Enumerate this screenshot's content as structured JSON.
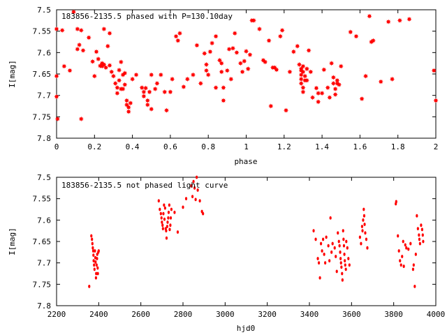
{
  "chart_data": [
    {
      "type": "scatter",
      "title": "183856-2135.5 phased with P=130.10day",
      "xlabel": "phase",
      "ylabel": "I[mag]",
      "xlim": [
        0,
        2
      ],
      "ylim": [
        7.5,
        7.8
      ],
      "y_inverted": true,
      "grid": false,
      "marker": "star",
      "color": "#ff0000",
      "xticks": [
        "0",
        "0.2",
        "0.4",
        "0.6",
        "0.8",
        "1",
        "1.2",
        "1.4",
        "1.6",
        "1.8",
        "2"
      ],
      "xtick_values": [
        0,
        0.2,
        0.4,
        0.6,
        0.8,
        1,
        1.2,
        1.4,
        1.6,
        1.8,
        2
      ],
      "yticks": [
        "7.5",
        "7.55",
        "7.6",
        "7.65",
        "7.7",
        "7.75",
        "7.8"
      ],
      "ytick_values": [
        7.5,
        7.55,
        7.6,
        7.65,
        7.7,
        7.75,
        7.8
      ],
      "points": [
        [
          0.0,
          7.545
        ],
        [
          0.0,
          7.655
        ],
        [
          0.0,
          7.703
        ],
        [
          0.005,
          7.755
        ],
        [
          0.03,
          7.548
        ],
        [
          0.04,
          7.632
        ],
        [
          0.07,
          7.642
        ],
        [
          0.09,
          7.505
        ],
        [
          0.11,
          7.545
        ],
        [
          0.11,
          7.592
        ],
        [
          0.12,
          7.582
        ],
        [
          0.13,
          7.548
        ],
        [
          0.13,
          7.755
        ],
        [
          0.14,
          7.595
        ],
        [
          0.17,
          7.565
        ],
        [
          0.19,
          7.621
        ],
        [
          0.2,
          7.655
        ],
        [
          0.21,
          7.598
        ],
        [
          0.22,
          7.615
        ],
        [
          0.23,
          7.631
        ],
        [
          0.24,
          7.625
        ],
        [
          0.24,
          7.632
        ],
        [
          0.25,
          7.628
        ],
        [
          0.25,
          7.545
        ],
        [
          0.26,
          7.635
        ],
        [
          0.27,
          7.585
        ],
        [
          0.28,
          7.63
        ],
        [
          0.28,
          7.555
        ],
        [
          0.29,
          7.645
        ],
        [
          0.3,
          7.655
        ],
        [
          0.31,
          7.672
        ],
        [
          0.32,
          7.682
        ],
        [
          0.32,
          7.695
        ],
        [
          0.33,
          7.665
        ],
        [
          0.33,
          7.641
        ],
        [
          0.34,
          7.685
        ],
        [
          0.34,
          7.622
        ],
        [
          0.35,
          7.652
        ],
        [
          0.35,
          7.685
        ],
        [
          0.36,
          7.675
        ],
        [
          0.36,
          7.648
        ],
        [
          0.37,
          7.712
        ],
        [
          0.37,
          7.722
        ],
        [
          0.38,
          7.728
        ],
        [
          0.38,
          7.738
        ],
        [
          0.39,
          7.718
        ],
        [
          0.4,
          7.662
        ],
        [
          0.42,
          7.652
        ],
        [
          0.45,
          7.682
        ],
        [
          0.46,
          7.692
        ],
        [
          0.46,
          7.702
        ],
        [
          0.47,
          7.683
        ],
        [
          0.48,
          7.712
        ],
        [
          0.48,
          7.722
        ],
        [
          0.49,
          7.692
        ],
        [
          0.5,
          7.732
        ],
        [
          0.5,
          7.652
        ],
        [
          0.52,
          7.685
        ],
        [
          0.53,
          7.672
        ],
        [
          0.55,
          7.652
        ],
        [
          0.57,
          7.692
        ],
        [
          0.58,
          7.735
        ],
        [
          0.6,
          7.692
        ],
        [
          0.61,
          7.662
        ],
        [
          0.63,
          7.562
        ],
        [
          0.64,
          7.572
        ],
        [
          0.65,
          7.555
        ],
        [
          0.67,
          7.68
        ],
        [
          0.69,
          7.662
        ],
        [
          0.72,
          7.652
        ],
        [
          0.74,
          7.583
        ],
        [
          0.76,
          7.672
        ],
        [
          0.78,
          7.602
        ],
        [
          0.79,
          7.628
        ],
        [
          0.79,
          7.642
        ],
        [
          0.8,
          7.652
        ],
        [
          0.81,
          7.598
        ],
        [
          0.82,
          7.578
        ],
        [
          0.84,
          7.562
        ],
        [
          0.84,
          7.682
        ],
        [
          0.86,
          7.618
        ],
        [
          0.87,
          7.625
        ],
        [
          0.87,
          7.645
        ],
        [
          0.88,
          7.682
        ],
        [
          0.88,
          7.712
        ],
        [
          0.9,
          7.642
        ],
        [
          0.91,
          7.592
        ],
        [
          0.92,
          7.662
        ],
        [
          0.93,
          7.59
        ],
        [
          0.94,
          7.555
        ],
        [
          0.95,
          7.6
        ],
        [
          0.97,
          7.625
        ],
        [
          0.98,
          7.645
        ],
        [
          0.99,
          7.62
        ],
        [
          1.0,
          7.597
        ],
        [
          1.01,
          7.638
        ],
        [
          1.02,
          7.605
        ],
        [
          1.03,
          7.525
        ],
        [
          1.04,
          7.525
        ],
        [
          1.07,
          7.545
        ],
        [
          1.09,
          7.618
        ],
        [
          1.1,
          7.622
        ],
        [
          1.12,
          7.572
        ],
        [
          1.13,
          7.725
        ],
        [
          1.14,
          7.635
        ],
        [
          1.15,
          7.635
        ],
        [
          1.16,
          7.64
        ],
        [
          1.18,
          7.562
        ],
        [
          1.19,
          7.548
        ],
        [
          1.21,
          7.735
        ],
        [
          1.23,
          7.645
        ],
        [
          1.25,
          7.598
        ],
        [
          1.27,
          7.585
        ],
        [
          1.28,
          7.628
        ],
        [
          1.29,
          7.638
        ],
        [
          1.29,
          7.642
        ],
        [
          1.29,
          7.652
        ],
        [
          1.29,
          7.662
        ],
        [
          1.29,
          7.672
        ],
        [
          1.3,
          7.682
        ],
        [
          1.3,
          7.692
        ],
        [
          1.3,
          7.632
        ],
        [
          1.3,
          7.645
        ],
        [
          1.31,
          7.655
        ],
        [
          1.31,
          7.665
        ],
        [
          1.32,
          7.638
        ],
        [
          1.32,
          7.665
        ],
        [
          1.33,
          7.595
        ],
        [
          1.34,
          7.645
        ],
        [
          1.35,
          7.705
        ],
        [
          1.37,
          7.683
        ],
        [
          1.38,
          7.695
        ],
        [
          1.38,
          7.715
        ],
        [
          1.4,
          7.695
        ],
        [
          1.41,
          7.64
        ],
        [
          1.43,
          7.682
        ],
        [
          1.44,
          7.705
        ],
        [
          1.45,
          7.625
        ],
        [
          1.46,
          7.658
        ],
        [
          1.46,
          7.672
        ],
        [
          1.47,
          7.685
        ],
        [
          1.47,
          7.698
        ],
        [
          1.48,
          7.665
        ],
        [
          1.48,
          7.672
        ],
        [
          1.49,
          7.675
        ],
        [
          1.5,
          7.632
        ],
        [
          1.55,
          7.552
        ],
        [
          1.58,
          7.562
        ],
        [
          1.61,
          7.708
        ],
        [
          1.63,
          7.655
        ],
        [
          1.65,
          7.515
        ],
        [
          1.66,
          7.575
        ],
        [
          1.67,
          7.572
        ],
        [
          1.71,
          7.668
        ],
        [
          1.75,
          7.528
        ],
        [
          1.77,
          7.662
        ],
        [
          1.81,
          7.525
        ],
        [
          1.86,
          7.522
        ],
        [
          1.99,
          7.642
        ],
        [
          2.0,
          7.712
        ]
      ]
    },
    {
      "type": "scatter",
      "title": "183856-2135.5 not phased light curve",
      "xlabel": "hjd0",
      "ylabel": "I[mag]",
      "xlim": [
        2200,
        4000
      ],
      "ylim": [
        7.5,
        7.8
      ],
      "y_inverted": true,
      "grid": false,
      "marker": "dot",
      "color": "#ff0000",
      "xticks": [
        "2200",
        "2400",
        "2600",
        "2800",
        "3000",
        "3200",
        "3400",
        "3600",
        "3800",
        "4000"
      ],
      "xtick_values": [
        2200,
        2400,
        2600,
        2800,
        3000,
        3200,
        3400,
        3600,
        3800,
        4000
      ],
      "yticks": [
        "7.5",
        "7.55",
        "7.6",
        "7.65",
        "7.7",
        "7.75",
        "7.8"
      ],
      "ytick_values": [
        7.5,
        7.55,
        7.6,
        7.65,
        7.7,
        7.75,
        7.8
      ],
      "points": [
        [
          2355,
          7.755
        ],
        [
          2365,
          7.637
        ],
        [
          2368,
          7.645
        ],
        [
          2370,
          7.655
        ],
        [
          2372,
          7.665
        ],
        [
          2374,
          7.672
        ],
        [
          2375,
          7.682
        ],
        [
          2376,
          7.695
        ],
        [
          2378,
          7.705
        ],
        [
          2380,
          7.715
        ],
        [
          2382,
          7.672
        ],
        [
          2384,
          7.688
        ],
        [
          2385,
          7.698
        ],
        [
          2387,
          7.735
        ],
        [
          2388,
          7.725
        ],
        [
          2390,
          7.705
        ],
        [
          2392,
          7.69
        ],
        [
          2393,
          7.68
        ],
        [
          2395,
          7.712
        ],
        [
          2396,
          7.725
        ],
        [
          2398,
          7.675
        ],
        [
          2400,
          7.672
        ],
        [
          2685,
          7.555
        ],
        [
          2690,
          7.575
        ],
        [
          2695,
          7.585
        ],
        [
          2698,
          7.595
        ],
        [
          2700,
          7.605
        ],
        [
          2703,
          7.612
        ],
        [
          2705,
          7.62
        ],
        [
          2707,
          7.585
        ],
        [
          2710,
          7.565
        ],
        [
          2712,
          7.598
        ],
        [
          2715,
          7.572
        ],
        [
          2718,
          7.62
        ],
        [
          2720,
          7.625
        ],
        [
          2722,
          7.642
        ],
        [
          2725,
          7.615
        ],
        [
          2727,
          7.605
        ],
        [
          2730,
          7.595
        ],
        [
          2732,
          7.582
        ],
        [
          2735,
          7.565
        ],
        [
          2737,
          7.622
        ],
        [
          2740,
          7.612
        ],
        [
          2742,
          7.595
        ],
        [
          2745,
          7.575
        ],
        [
          2760,
          7.582
        ],
        [
          2775,
          7.628
        ],
        [
          2800,
          7.57
        ],
        [
          2815,
          7.55
        ],
        [
          2840,
          7.52
        ],
        [
          2845,
          7.545
        ],
        [
          2850,
          7.51
        ],
        [
          2855,
          7.525
        ],
        [
          2860,
          7.552
        ],
        [
          2865,
          7.5
        ],
        [
          2870,
          7.53
        ],
        [
          2880,
          7.555
        ],
        [
          2890,
          7.58
        ],
        [
          2895,
          7.585
        ],
        [
          3420,
          7.625
        ],
        [
          3430,
          7.645
        ],
        [
          3440,
          7.69
        ],
        [
          3445,
          7.7
        ],
        [
          3450,
          7.735
        ],
        [
          3455,
          7.655
        ],
        [
          3460,
          7.672
        ],
        [
          3465,
          7.645
        ],
        [
          3470,
          7.68
        ],
        [
          3475,
          7.7
        ],
        [
          3480,
          7.64
        ],
        [
          3490,
          7.66
        ],
        [
          3495,
          7.695
        ],
        [
          3500,
          7.595
        ],
        [
          3505,
          7.675
        ],
        [
          3510,
          7.655
        ],
        [
          3520,
          7.665
        ],
        [
          3525,
          7.685
        ],
        [
          3530,
          7.72
        ],
        [
          3535,
          7.63
        ],
        [
          3540,
          7.65
        ],
        [
          3543,
          7.66
        ],
        [
          3546,
          7.675
        ],
        [
          3548,
          7.69
        ],
        [
          3550,
          7.7
        ],
        [
          3552,
          7.71
        ],
        [
          3555,
          7.725
        ],
        [
          3557,
          7.74
        ],
        [
          3560,
          7.625
        ],
        [
          3562,
          7.645
        ],
        [
          3564,
          7.66
        ],
        [
          3566,
          7.68
        ],
        [
          3568,
          7.695
        ],
        [
          3570,
          7.705
        ],
        [
          3573,
          7.715
        ],
        [
          3575,
          7.65
        ],
        [
          3580,
          7.665
        ],
        [
          3585,
          7.69
        ],
        [
          3590,
          7.705
        ],
        [
          3640,
          7.64
        ],
        [
          3645,
          7.655
        ],
        [
          3650,
          7.615
        ],
        [
          3652,
          7.625
        ],
        [
          3655,
          7.6
        ],
        [
          3658,
          7.575
        ],
        [
          3660,
          7.59
        ],
        [
          3662,
          7.61
        ],
        [
          3665,
          7.63
        ],
        [
          3670,
          7.645
        ],
        [
          3675,
          7.665
        ],
        [
          3810,
          7.562
        ],
        [
          3812,
          7.557
        ],
        [
          3820,
          7.637
        ],
        [
          3825,
          7.672
        ],
        [
          3830,
          7.695
        ],
        [
          3835,
          7.705
        ],
        [
          3840,
          7.685
        ],
        [
          3845,
          7.65
        ],
        [
          3848,
          7.708
        ],
        [
          3855,
          7.658
        ],
        [
          3860,
          7.665
        ],
        [
          3870,
          7.668
        ],
        [
          3880,
          7.655
        ],
        [
          3892,
          7.715
        ],
        [
          3895,
          7.705
        ],
        [
          3900,
          7.755
        ],
        [
          3905,
          7.68
        ],
        [
          3910,
          7.59
        ],
        [
          3915,
          7.62
        ],
        [
          3920,
          7.635
        ],
        [
          3922,
          7.645
        ],
        [
          3925,
          7.655
        ],
        [
          3930,
          7.612
        ],
        [
          3935,
          7.622
        ],
        [
          3938,
          7.635
        ],
        [
          3940,
          7.65
        ]
      ]
    }
  ]
}
